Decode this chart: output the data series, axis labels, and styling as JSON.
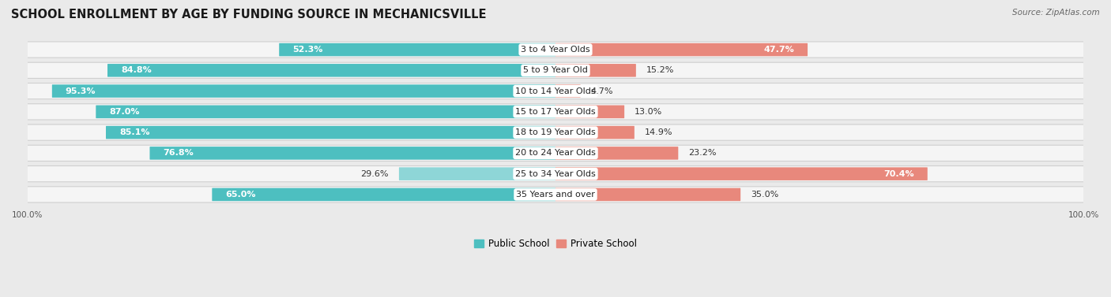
{
  "title": "SCHOOL ENROLLMENT BY AGE BY FUNDING SOURCE IN MECHANICSVILLE",
  "source": "Source: ZipAtlas.com",
  "categories": [
    "3 to 4 Year Olds",
    "5 to 9 Year Old",
    "10 to 14 Year Olds",
    "15 to 17 Year Olds",
    "18 to 19 Year Olds",
    "20 to 24 Year Olds",
    "25 to 34 Year Olds",
    "35 Years and over"
  ],
  "public_values": [
    52.3,
    84.8,
    95.3,
    87.0,
    85.1,
    76.8,
    29.6,
    65.0
  ],
  "private_values": [
    47.7,
    15.2,
    4.7,
    13.0,
    14.9,
    23.2,
    70.4,
    35.0
  ],
  "public_color": "#4dbfc0",
  "private_color": "#e8887c",
  "public_color_light": "#8ed6d7",
  "background_color": "#eaeaea",
  "row_bg_color": "#f5f5f5",
  "title_fontsize": 10.5,
  "bar_label_fontsize": 8,
  "category_fontsize": 8,
  "legend_fontsize": 8.5,
  "axis_tick_fontsize": 7.5
}
